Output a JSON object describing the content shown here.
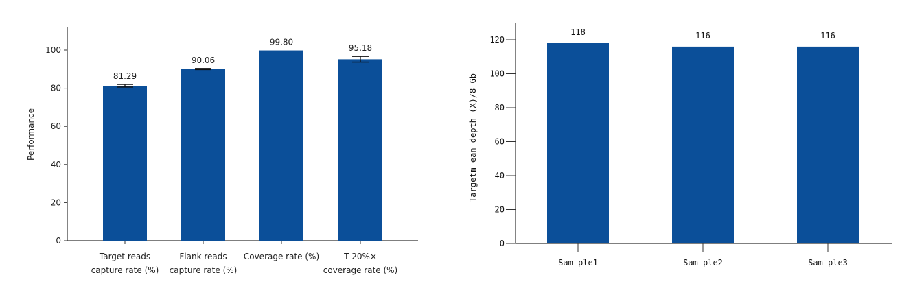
{
  "chart_data": [
    {
      "type": "bar",
      "title": "",
      "xlabel": "",
      "ylabel": "Performance",
      "ylim": [
        0,
        110
      ],
      "yticks": [
        0,
        20,
        40,
        60,
        80,
        100
      ],
      "categories": [
        [
          "Target reads",
          "capture rate (%)"
        ],
        [
          "Flank reads",
          "capture rate (%)"
        ],
        [
          "Coverage rate (%)"
        ],
        [
          "T 20%×",
          "coverage rate (%)"
        ]
      ],
      "values": [
        81.29,
        90.06,
        99.8,
        95.18
      ],
      "value_labels": [
        "81.29",
        "90.06",
        "99.80",
        "95.18"
      ],
      "error": [
        0.7,
        0.3,
        0,
        1.5
      ],
      "color": "#0b4f99",
      "grid": false
    },
    {
      "type": "bar",
      "title": "",
      "xlabel": "",
      "ylabel": "Targetm ean depth (X)/8 Gb",
      "ylim": [
        0,
        130
      ],
      "yticks": [
        0,
        20,
        40,
        60,
        80,
        100,
        120
      ],
      "categories": [
        "Sam ple1",
        "Sam ple2",
        "Sam ple3"
      ],
      "values": [
        118,
        116,
        116
      ],
      "value_labels": [
        "118",
        "116",
        "116"
      ],
      "color": "#0b4f99",
      "grid": false
    }
  ]
}
